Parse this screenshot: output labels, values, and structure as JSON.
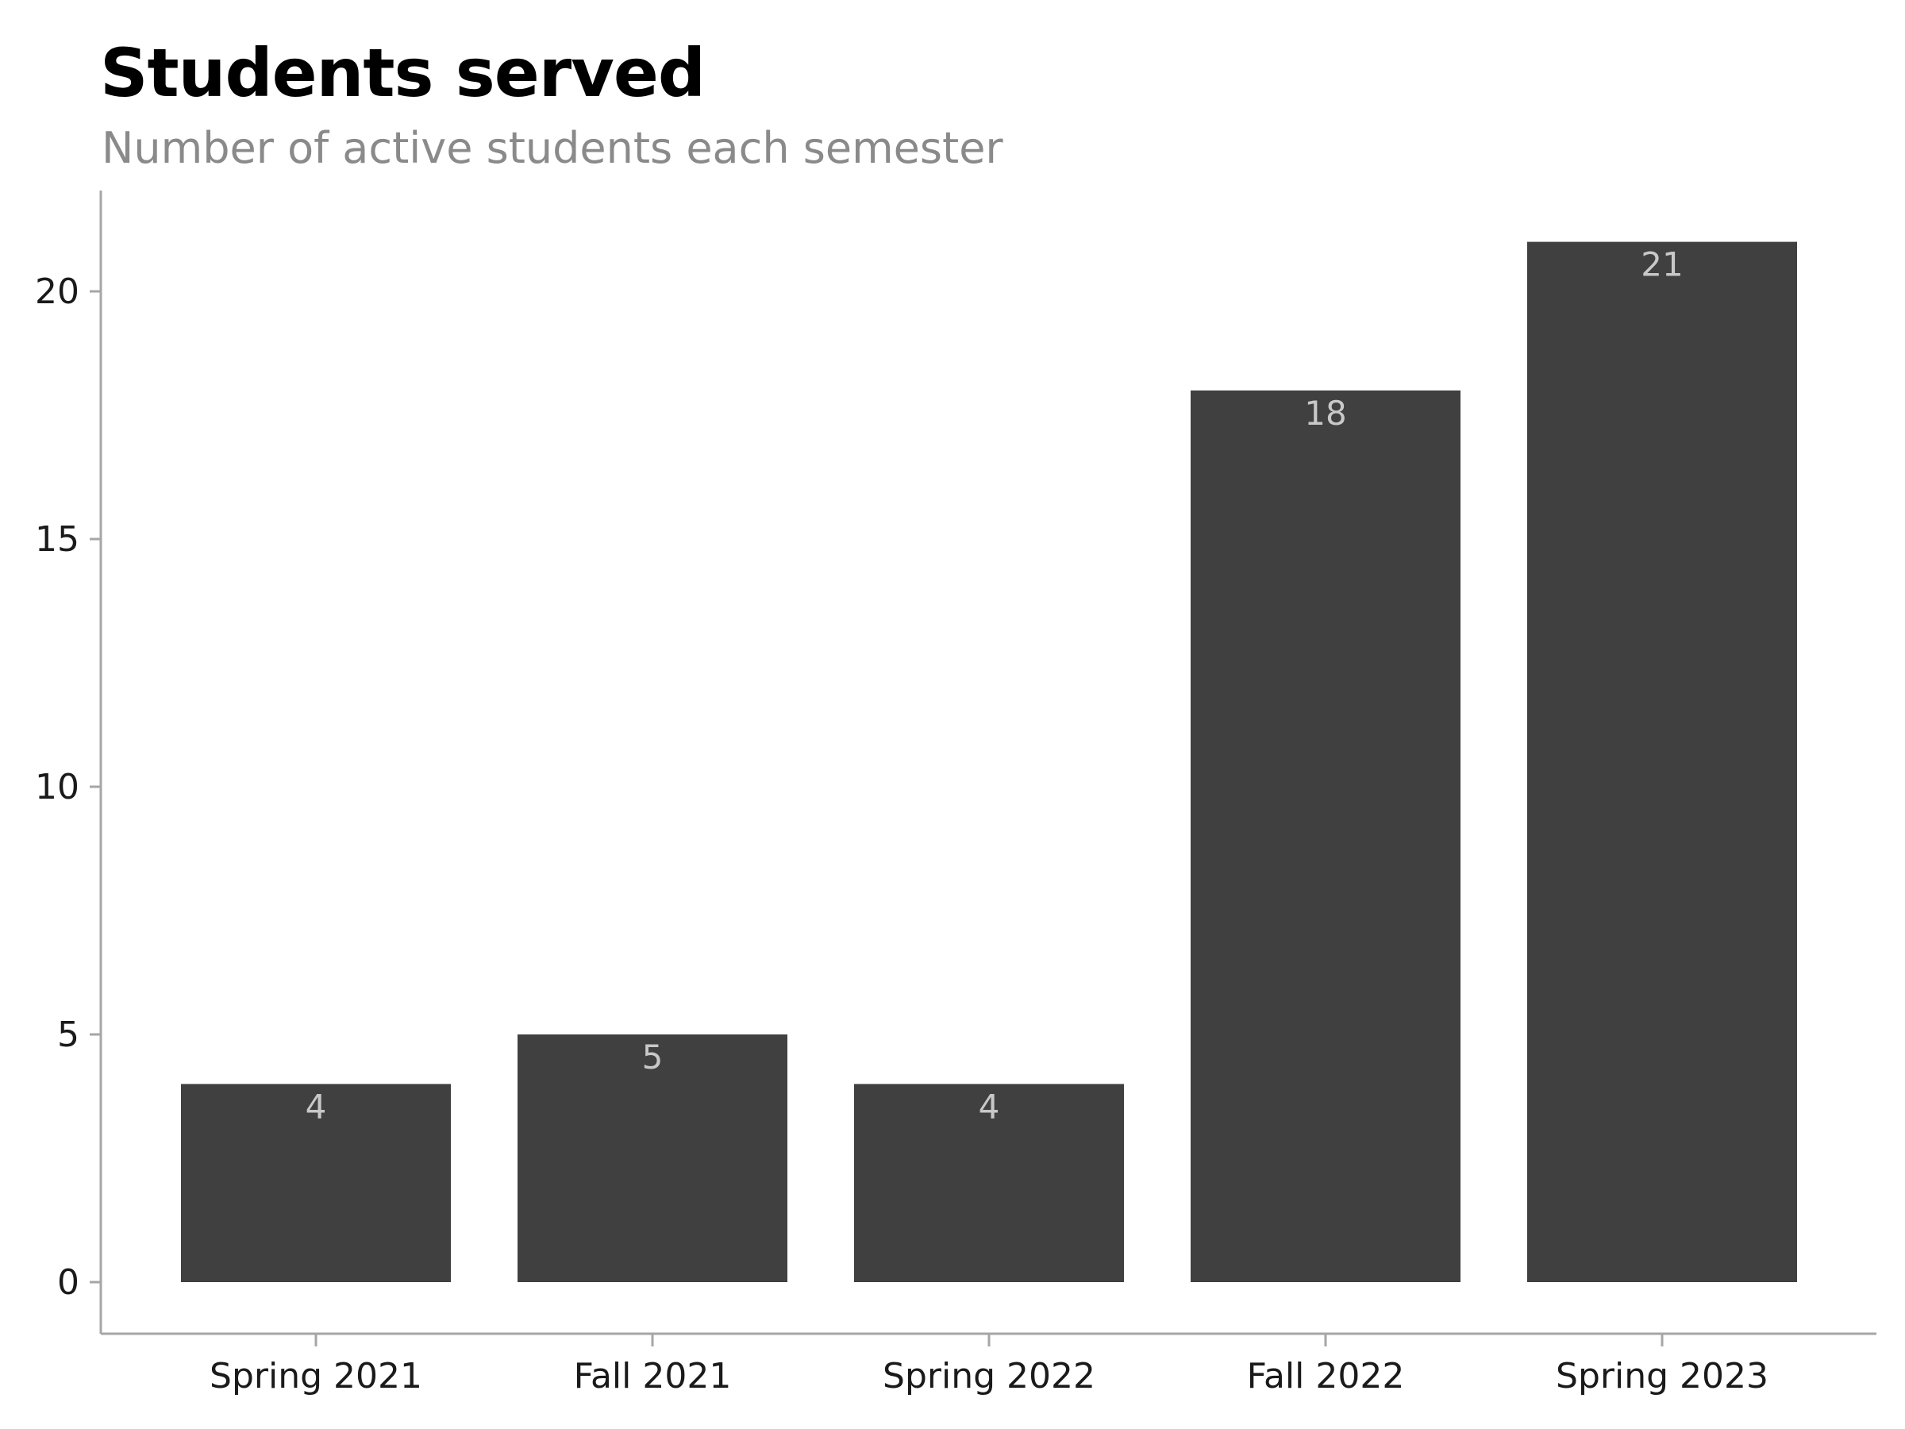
{
  "chart_data": {
    "type": "bar",
    "title": "Students served",
    "subtitle": "Number of active students each semester",
    "xlabel": "",
    "ylabel": "",
    "categories": [
      "Spring 2021",
      "Fall 2021",
      "Spring 2022",
      "Fall 2022",
      "Spring 2023"
    ],
    "values": [
      4,
      5,
      4,
      18,
      21
    ],
    "data_labels": [
      "4",
      "5",
      "4",
      "18",
      "21"
    ],
    "ylim": [
      -1,
      22
    ],
    "yticks": [
      0,
      5,
      10,
      15,
      20
    ],
    "ytick_labels": [
      "0",
      "5",
      "10",
      "15",
      "20"
    ],
    "grid": false,
    "legend": "none",
    "colors": {
      "bar": "#404040",
      "axis": "#a6a6a6",
      "data_label": "#c8c8c8",
      "subtitle": "#8a8a8a"
    }
  }
}
